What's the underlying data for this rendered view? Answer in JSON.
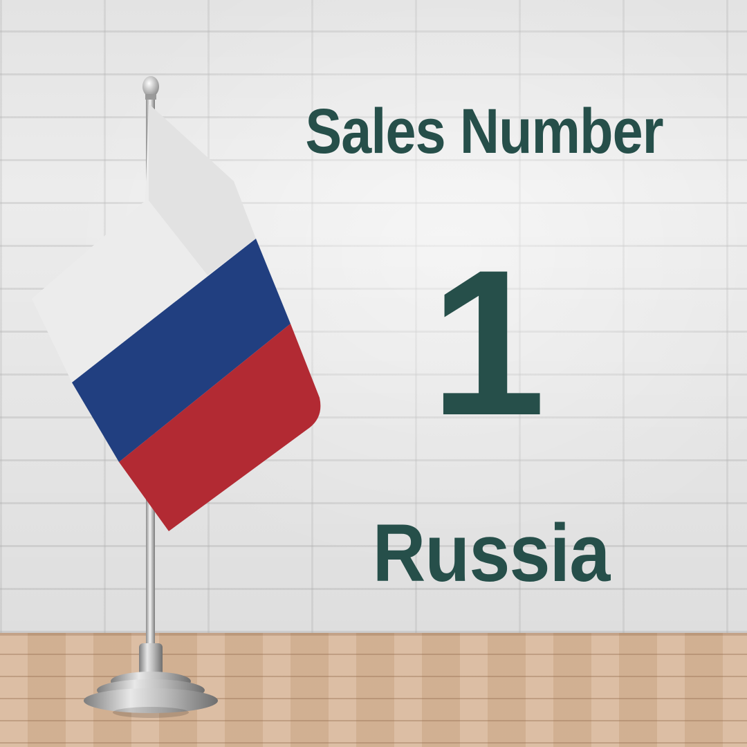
{
  "title": "Sales Number",
  "rank": "1",
  "country": "Russia",
  "colors": {
    "text": "#264f4a",
    "flag_white": "#ececec",
    "flag_blue": "#213f80",
    "flag_red": "#b22a33",
    "wall": "#ececec",
    "floor": "#d8b79a"
  },
  "icons": {
    "flag": "russia-flag-icon",
    "stand": "flag-stand-icon"
  }
}
